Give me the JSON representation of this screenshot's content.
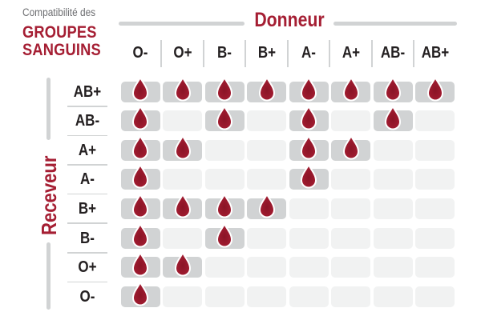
{
  "title": {
    "eyebrow": "Compatibilité des",
    "line1": "GROUPES",
    "line2": "SANGUINS"
  },
  "axis": {
    "donor": "Donneur",
    "recipient": "Receveur"
  },
  "colors": {
    "accent_red": "#a51e33",
    "label_dark": "#231f20",
    "muted_gray": "#6d6e71",
    "line_gray": "#d1d3d4",
    "cell_filled": "#d1d3d4",
    "cell_empty": "#f1f2f2",
    "drop_core": "#8a1426",
    "drop_mid": "#9c1a2e",
    "drop_edge": "#aa2136",
    "drop_outline": "#ffffff"
  },
  "icons": {
    "compatible_marker": "blood-drop-icon"
  },
  "chart_data": {
    "type": "heatmap",
    "title": "Compatibilité des GROUPES SANGUINS",
    "x_axis_label": "Donneur",
    "y_axis_label": "Receveur",
    "columns": [
      "O-",
      "O+",
      "B-",
      "B+",
      "A-",
      "A+",
      "AB-",
      "AB+"
    ],
    "rows": [
      "AB+",
      "AB-",
      "A+",
      "A-",
      "B+",
      "B-",
      "O+",
      "O-"
    ],
    "values": [
      [
        1,
        1,
        1,
        1,
        1,
        1,
        1,
        1
      ],
      [
        1,
        0,
        1,
        0,
        1,
        0,
        1,
        0
      ],
      [
        1,
        1,
        0,
        0,
        1,
        1,
        0,
        0
      ],
      [
        1,
        0,
        0,
        0,
        1,
        0,
        0,
        0
      ],
      [
        1,
        1,
        1,
        1,
        0,
        0,
        0,
        0
      ],
      [
        1,
        0,
        1,
        0,
        0,
        0,
        0,
        0
      ],
      [
        1,
        1,
        0,
        0,
        0,
        0,
        0,
        0
      ],
      [
        1,
        0,
        0,
        0,
        0,
        0,
        0,
        0
      ]
    ],
    "value_meaning": "1 = compatible (blood drop shown), 0 = not compatible (empty cell)",
    "legend_position": "none",
    "grid": false
  }
}
